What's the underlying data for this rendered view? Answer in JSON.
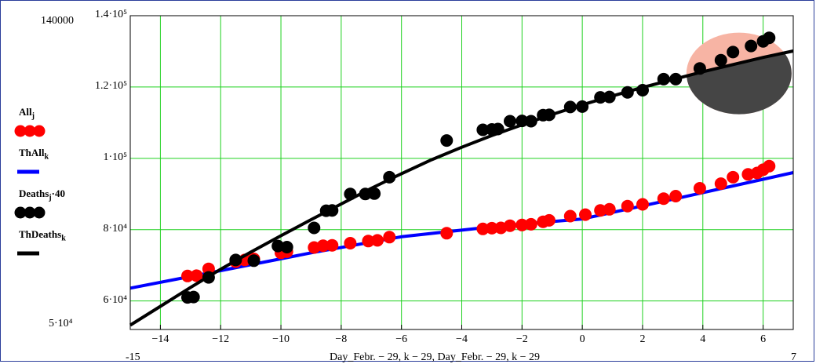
{
  "chart_data": {
    "type": "scatter",
    "title": "",
    "xlabel": "Day_Febr. − 29, k − 29, Day_Febr. − 29, k − 29",
    "ylabel": "",
    "xlim": [
      -15,
      7
    ],
    "ylim": [
      52000,
      140000
    ],
    "x_ticks": [
      "−14",
      "−12",
      "−10",
      "−8",
      "−6",
      "−4",
      "−2",
      "0",
      "2",
      "4",
      "6"
    ],
    "x_min_label": "-15",
    "x_max_label": "7",
    "y_min_label": "5·10⁴",
    "y_max_label": "140000",
    "y_ticks": [
      {
        "value": 60000,
        "label": "6·10⁴"
      },
      {
        "value": 80000,
        "label": "8·10⁴"
      },
      {
        "value": 100000,
        "label": "1·10⁵"
      },
      {
        "value": 120000,
        "label": "1.2·10⁵"
      },
      {
        "value": 140000,
        "label": "1.4·10⁵"
      }
    ],
    "grid": true,
    "grid_color": "#1fd11f",
    "legend_position": "left",
    "series": [
      {
        "name": "All_j",
        "kind": "points",
        "color": "#ff0000",
        "x": [
          -13.1,
          -12.8,
          -12.4,
          -11.5,
          -11.2,
          -10.9,
          -10,
          -9.8,
          -8.9,
          -8.6,
          -8.3,
          -7.7,
          -7.1,
          -6.8,
          -6.4,
          -4.5,
          -3.3,
          -3,
          -2.7,
          -2.4,
          -2,
          -1.7,
          -1.3,
          -1.1,
          -0.4,
          0.1,
          0.6,
          0.9,
          1.5,
          2,
          2.7,
          3.1,
          3.9,
          4.6,
          5,
          5.5,
          5.8,
          6,
          6.2
        ],
        "y": [
          67000,
          67100,
          69000,
          71000,
          71500,
          71800,
          73500,
          73800,
          75000,
          75500,
          75600,
          76200,
          76800,
          77000,
          77900,
          79000,
          80200,
          80400,
          80500,
          81100,
          81300,
          81500,
          82200,
          82600,
          83800,
          84200,
          85400,
          85700,
          86600,
          87100,
          88700,
          89400,
          91600,
          92900,
          94700,
          95500,
          95900,
          96800,
          97800
        ]
      },
      {
        "name": "ThAll_k",
        "kind": "line",
        "color": "#0000ff",
        "x": [
          -15,
          -12,
          -9,
          -6,
          -3,
          0,
          3,
          7
        ],
        "y": [
          63600,
          68500,
          73500,
          78000,
          80800,
          83000,
          88500,
          96000
        ]
      },
      {
        "name": "Deaths_j·40",
        "kind": "points",
        "color": "#000000",
        "x": [
          -13.1,
          -12.9,
          -12.4,
          -11.5,
          -10.9,
          -10.1,
          -9.8,
          -8.9,
          -8.5,
          -8.3,
          -7.7,
          -7.2,
          -6.9,
          -6.4,
          -4.5,
          -3.3,
          -3,
          -2.8,
          -2.4,
          -2,
          -1.7,
          -1.3,
          -1.1,
          -0.4,
          0,
          0.6,
          0.9,
          1.5,
          2,
          2.7,
          3.1,
          3.9,
          4.6,
          5,
          5.6,
          6,
          6.2
        ],
        "y": [
          61000,
          61100,
          66600,
          71500,
          71300,
          75400,
          75100,
          80500,
          85300,
          85400,
          90000,
          90000,
          90100,
          94700,
          105000,
          108000,
          108100,
          108200,
          110400,
          110500,
          110400,
          112100,
          112200,
          114400,
          114500,
          117100,
          117200,
          118500,
          119100,
          122200,
          122200,
          125200,
          127500,
          129800,
          131500,
          132800,
          133800
        ]
      },
      {
        "name": "ThDeaths_k",
        "kind": "line",
        "color": "#000000",
        "x": [
          -15,
          -14,
          -13,
          -12,
          -11,
          -10,
          -9,
          -8,
          -7,
          -6,
          -5,
          -4,
          -3,
          -2,
          -1,
          0,
          1,
          2,
          3,
          4,
          5,
          6,
          7
        ],
        "y": [
          53200,
          58500,
          63800,
          68900,
          73700,
          78300,
          82800,
          87200,
          91600,
          95700,
          99600,
          103100,
          106400,
          109400,
          112300,
          115000,
          117500,
          119900,
          122100,
          124300,
          126300,
          128300,
          130100
        ]
      }
    ],
    "annotation": {
      "type": "ellipse",
      "x_center": 5.2,
      "y_center": 123800
    }
  },
  "legend": {
    "items": [
      {
        "name": "All",
        "sub": "j",
        "tail": ""
      },
      {
        "name": "ThAll",
        "sub": "k",
        "tail": ""
      },
      {
        "name": "Deaths",
        "sub": "j",
        "tail": "·40"
      },
      {
        "name": "ThDeaths",
        "sub": "k",
        "tail": ""
      }
    ]
  }
}
